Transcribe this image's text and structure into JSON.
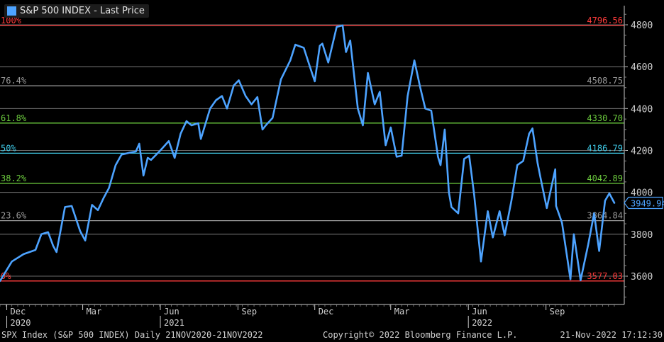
{
  "chart_data": {
    "type": "line",
    "title": "S&P 500 INDEX - Last Price",
    "series": [
      {
        "name": "S&P 500 INDEX - Last Price",
        "color": "#4da3ff",
        "x": [
          "2020-11-23",
          "2020-12-07",
          "2020-12-21",
          "2021-01-04",
          "2021-01-11",
          "2021-01-19",
          "2021-01-25",
          "2021-01-29",
          "2021-02-08",
          "2021-02-16",
          "2021-02-26",
          "2021-03-04",
          "2021-03-12",
          "2021-03-19",
          "2021-03-26",
          "2021-04-01",
          "2021-04-09",
          "2021-04-16",
          "2021-04-26",
          "2021-05-03",
          "2021-05-07",
          "2021-05-12",
          "2021-05-17",
          "2021-05-21",
          "2021-06-01",
          "2021-06-11",
          "2021-06-18",
          "2021-06-25",
          "2021-07-02",
          "2021-07-08",
          "2021-07-16",
          "2021-07-19",
          "2021-07-30",
          "2021-08-06",
          "2021-08-13",
          "2021-08-19",
          "2021-08-27",
          "2021-09-02",
          "2021-09-10",
          "2021-09-17",
          "2021-09-24",
          "2021-09-30",
          "2021-10-04",
          "2021-10-12",
          "2021-10-22",
          "2021-11-02",
          "2021-11-08",
          "2021-11-18",
          "2021-11-26",
          "2021-12-01",
          "2021-12-07",
          "2021-12-10",
          "2021-12-17",
          "2021-12-27",
          "2022-01-03",
          "2022-01-07",
          "2022-01-12",
          "2022-01-21",
          "2022-01-27",
          "2022-02-02",
          "2022-02-10",
          "2022-02-16",
          "2022-02-23",
          "2022-03-01",
          "2022-03-08",
          "2022-03-14",
          "2022-03-21",
          "2022-03-29",
          "2022-04-05",
          "2022-04-11",
          "2022-04-18",
          "2022-04-26",
          "2022-04-29",
          "2022-05-04",
          "2022-05-09",
          "2022-05-12",
          "2022-05-20",
          "2022-05-27",
          "2022-06-02",
          "2022-06-08",
          "2022-06-16",
          "2022-06-24",
          "2022-06-30",
          "2022-07-08",
          "2022-07-14",
          "2022-07-22",
          "2022-07-29",
          "2022-08-05",
          "2022-08-12",
          "2022-08-16",
          "2022-08-22",
          "2022-08-26",
          "2022-09-02",
          "2022-09-12",
          "2022-09-13",
          "2022-09-20",
          "2022-09-30",
          "2022-10-04",
          "2022-10-12",
          "2022-10-21",
          "2022-10-28",
          "2022-11-03",
          "2022-11-10",
          "2022-11-15",
          "2022-11-21"
        ],
        "values": [
          3577,
          3670,
          3705,
          3725,
          3800,
          3810,
          3745,
          3715,
          3930,
          3935,
          3815,
          3770,
          3940,
          3915,
          3975,
          4020,
          4130,
          4180,
          4190,
          4195,
          4232,
          4080,
          4165,
          4155,
          4200,
          4245,
          4165,
          4280,
          4340,
          4320,
          4330,
          4255,
          4400,
          4440,
          4460,
          4400,
          4510,
          4535,
          4460,
          4420,
          4455,
          4300,
          4320,
          4355,
          4540,
          4630,
          4705,
          4690,
          4590,
          4530,
          4700,
          4710,
          4620,
          4790,
          4797,
          4670,
          4725,
          4400,
          4320,
          4570,
          4420,
          4480,
          4225,
          4310,
          4170,
          4175,
          4460,
          4630,
          4500,
          4400,
          4390,
          4170,
          4130,
          4300,
          4000,
          3930,
          3900,
          4160,
          4175,
          3985,
          3670,
          3910,
          3785,
          3910,
          3795,
          3960,
          4130,
          4150,
          4280,
          4305,
          4140,
          4060,
          3925,
          4110,
          3935,
          3855,
          3585,
          3800,
          3580,
          3750,
          3900,
          3720,
          3960,
          3995,
          3950
        ]
      }
    ],
    "x_ticks": [
      {
        "date": "2020-12-01",
        "label": "Dec",
        "year": "2020"
      },
      {
        "date": "2021-03-01",
        "label": "Mar",
        "year": ""
      },
      {
        "date": "2021-06-01",
        "label": "Jun",
        "year": "2021"
      },
      {
        "date": "2021-09-01",
        "label": "Sep",
        "year": ""
      },
      {
        "date": "2021-12-01",
        "label": "Dec",
        "year": ""
      },
      {
        "date": "2022-03-01",
        "label": "Mar",
        "year": ""
      },
      {
        "date": "2022-06-01",
        "label": "Jun",
        "year": "2022"
      },
      {
        "date": "2022-09-01",
        "label": "Sep",
        "year": ""
      }
    ],
    "y_ticks": [
      "3600",
      "3800",
      "4000",
      "4200",
      "4400",
      "4600",
      "4800"
    ],
    "xlim": [
      "2020-11-23",
      "2022-11-21"
    ],
    "ylim": [
      3440,
      4880
    ],
    "grid_lines": [
      3600,
      3800,
      4000,
      4200,
      4400,
      4600,
      4800
    ],
    "fibonacci_levels": [
      {
        "pct": "100%",
        "value": 4796.56,
        "label": "4796.56",
        "color": "#ff3b3b"
      },
      {
        "pct": "76.4%",
        "value": 4508.75,
        "label": "4508.75",
        "color": "#9a9a9a"
      },
      {
        "pct": "61.8%",
        "value": 4330.7,
        "label": "4330.70",
        "color": "#6ccb3e"
      },
      {
        "pct": "50%",
        "value": 4186.79,
        "label": "4186.79",
        "color": "#3fc9e6"
      },
      {
        "pct": "38.2%",
        "value": 4042.89,
        "label": "4042.89",
        "color": "#6ccb3e"
      },
      {
        "pct": "23.6%",
        "value": 3864.84,
        "label": "3864.84",
        "color": "#9a9a9a"
      },
      {
        "pct": "0%",
        "value": 3577.03,
        "label": "3577.03",
        "color": "#ff3b3b"
      }
    ],
    "last_price": {
      "value": 3949.94,
      "label": "3949.94"
    }
  },
  "legend": {
    "label": "S&P 500 INDEX - Last Price",
    "color": "#4da3ff"
  },
  "footer": {
    "left": "SPX Index (S&P 500 INDEX)  Daily 21NOV2020-21NOV2022",
    "center": "Copyright© 2022 Bloomberg Finance L.P.",
    "right": "21-Nov-2022 17:12:30"
  }
}
